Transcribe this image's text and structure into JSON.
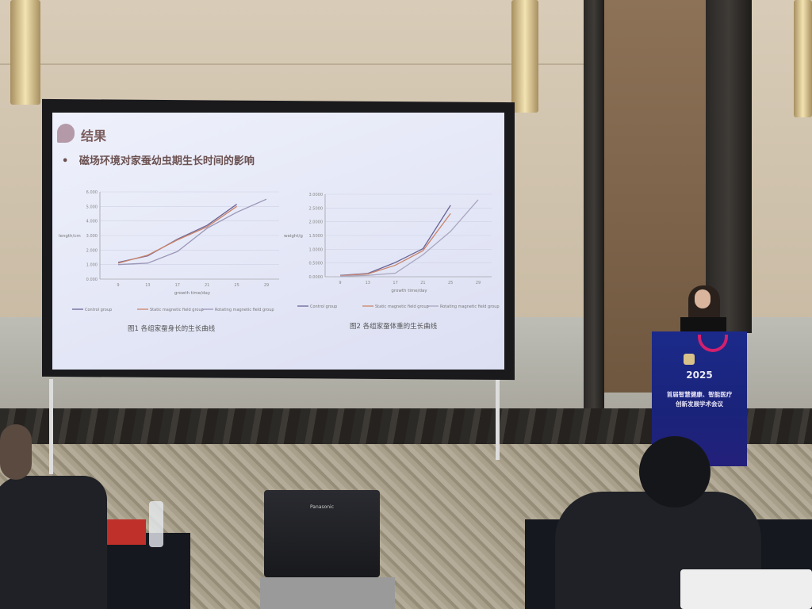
{
  "slide": {
    "title": "结果",
    "bullet": "磁场环境对家蚕幼虫期生长时间的影响",
    "figure1_caption": "图1 各组家蚕身长的生长曲线",
    "figure2_caption": "图2 各组家蚕体重的生长曲线"
  },
  "podium": {
    "year": "2025",
    "line1": "首届智慧健康、智能医疗",
    "line2": "创新发展学术会议"
  },
  "projector": {
    "brand": "Panasonic"
  },
  "chart_data": [
    {
      "type": "line",
      "title": "",
      "xlabel": "growth time/day",
      "ylabel": "length/cm",
      "x": [
        9,
        13,
        17,
        21,
        25,
        29
      ],
      "ylim": [
        0,
        6
      ],
      "yticks": [
        "0.000",
        "1.000",
        "2.000",
        "3.000",
        "4.000",
        "5.000",
        "6.000"
      ],
      "grid": true,
      "legend": "bottom",
      "series": [
        {
          "name": "Control group",
          "color": "#6a6496",
          "values": [
            1.15,
            1.6,
            2.75,
            3.7,
            5.15,
            null
          ]
        },
        {
          "name": "Static magnetic field group",
          "color": "#c9846a",
          "values": [
            1.1,
            1.65,
            2.7,
            3.6,
            5.0,
            null
          ]
        },
        {
          "name": "Rotating magnetic field group",
          "color": "#9b97b8",
          "values": [
            1.0,
            1.1,
            1.9,
            3.5,
            4.6,
            5.5
          ]
        }
      ]
    },
    {
      "type": "line",
      "title": "",
      "xlabel": "growth time/day",
      "ylabel": "weight/g",
      "x": [
        9,
        13,
        17,
        21,
        25,
        29
      ],
      "ylim": [
        0,
        3
      ],
      "yticks": [
        "0.0000",
        "0.5000",
        "1.0000",
        "1.5000",
        "2.0000",
        "2.5000",
        "3.0000"
      ],
      "grid": true,
      "legend": "bottom",
      "series": [
        {
          "name": "Control group",
          "color": "#6a6496",
          "values": [
            0.05,
            0.12,
            0.52,
            1.02,
            2.6,
            null
          ]
        },
        {
          "name": "Static magnetic field group",
          "color": "#c9846a",
          "values": [
            0.04,
            0.1,
            0.42,
            0.95,
            2.3,
            null
          ]
        },
        {
          "name": "Rotating magnetic field group",
          "color": "#a9a6c0",
          "values": [
            0.02,
            0.05,
            0.13,
            0.8,
            1.65,
            2.8
          ]
        }
      ]
    }
  ]
}
